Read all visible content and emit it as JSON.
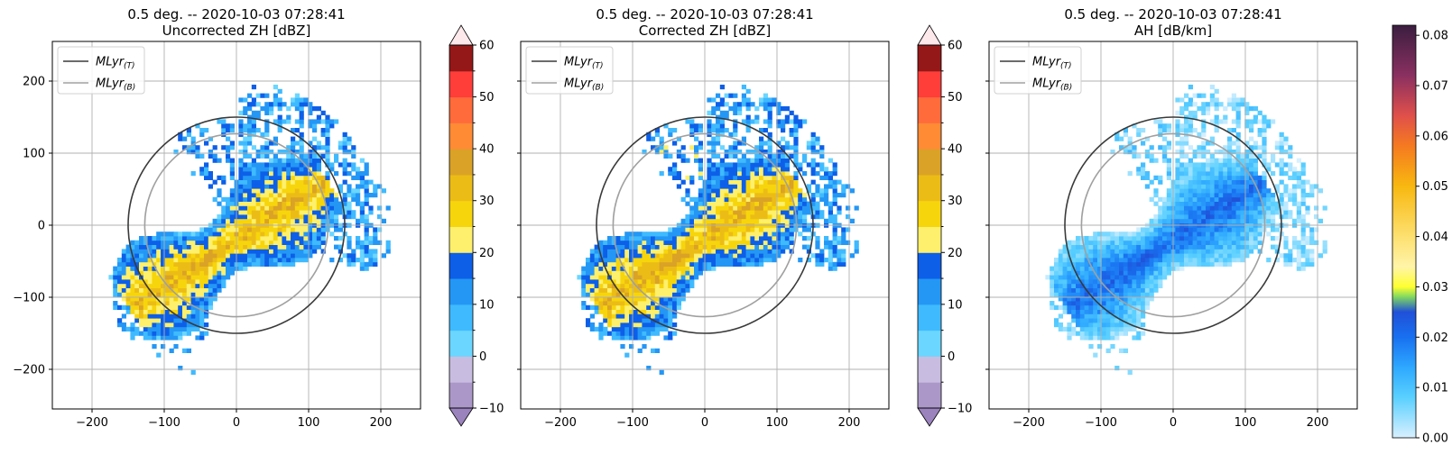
{
  "panels": [
    {
      "title_line1": "0.5 deg. -- 2020-10-03 07:28:41",
      "title_line2": "Uncorrected ZH [dBZ]",
      "field": "zh",
      "colorbar": "zh"
    },
    {
      "title_line1": "0.5 deg. -- 2020-10-03 07:28:41",
      "title_line2": "Corrected ZH [dBZ]",
      "field": "zh_corr",
      "colorbar": "zh"
    },
    {
      "title_line1": "0.5 deg. -- 2020-10-03 07:28:41",
      "title_line2": "AH [dB/km]",
      "field": "ah",
      "colorbar": "ah"
    }
  ],
  "legend": [
    {
      "label": "MLyr",
      "subscript": "(T)",
      "color": "#3a3a3a"
    },
    {
      "label": "MLyr",
      "subscript": "(B)",
      "color": "#a0a0a0"
    }
  ],
  "chart_data": {
    "type": "heatmap",
    "projection": "radar PPI (km from radar)",
    "xlim": [
      -255,
      255
    ],
    "ylim": [
      -255,
      255
    ],
    "xticks": [
      -200,
      -100,
      0,
      100,
      200
    ],
    "yticks": [
      -200,
      -100,
      0,
      100,
      200
    ],
    "grid": true,
    "legend_position": "top-left",
    "melting_layer_rings_km": {
      "top": 150,
      "bottom": 127
    },
    "zh_colorbar": {
      "min": -10,
      "max": 60,
      "extend": "both",
      "ticks": [
        -10,
        0,
        10,
        20,
        30,
        40,
        50,
        60
      ],
      "bounds": [
        -10,
        -5,
        0,
        5,
        10,
        15,
        20,
        25,
        30,
        35,
        40,
        45,
        50,
        55,
        60
      ],
      "colors": [
        "#ab98c8",
        "#c8bde0",
        "#6bd6ff",
        "#3fbaff",
        "#2497f5",
        "#0d5fe8",
        "#fef06c",
        "#f7d50c",
        "#ecbc16",
        "#daa226",
        "#ff8b35",
        "#ff6b3a",
        "#ff3e3a",
        "#951818"
      ],
      "under_color": "#9b83bd",
      "over_color": "#fde8ec"
    },
    "ah_colorbar": {
      "min": 0.0,
      "max": 0.082,
      "ticks": [
        0.0,
        0.01,
        0.02,
        0.03,
        0.04,
        0.05,
        0.06,
        0.07,
        0.08
      ],
      "tick_labels": [
        "0.00",
        "0.01",
        "0.02",
        "0.03",
        "0.04",
        "0.05",
        "0.06",
        "0.07",
        "0.08"
      ],
      "gradient": [
        {
          "v": 0.0,
          "c": "#d8f0ff"
        },
        {
          "v": 0.008,
          "c": "#5ad0ff"
        },
        {
          "v": 0.014,
          "c": "#2ea8ff"
        },
        {
          "v": 0.02,
          "c": "#1870f0"
        },
        {
          "v": 0.025,
          "c": "#2050d8"
        },
        {
          "v": 0.028,
          "c": "#80d860"
        },
        {
          "v": 0.03,
          "c": "#ffff30"
        },
        {
          "v": 0.034,
          "c": "#fff4a8"
        },
        {
          "v": 0.04,
          "c": "#fde070"
        },
        {
          "v": 0.05,
          "c": "#f8b810"
        },
        {
          "v": 0.058,
          "c": "#f57a20"
        },
        {
          "v": 0.064,
          "c": "#e0504a"
        },
        {
          "v": 0.072,
          "c": "#8a3060"
        },
        {
          "v": 0.082,
          "c": "#3a1e40"
        }
      ]
    },
    "echo_features": [
      {
        "name": "band",
        "note": "SW-NE high-reflectivity band",
        "zh_peak": 30
      },
      {
        "name": "northeast",
        "note": "scattered echoes beyond ring",
        "zh_peak": 15
      }
    ]
  }
}
